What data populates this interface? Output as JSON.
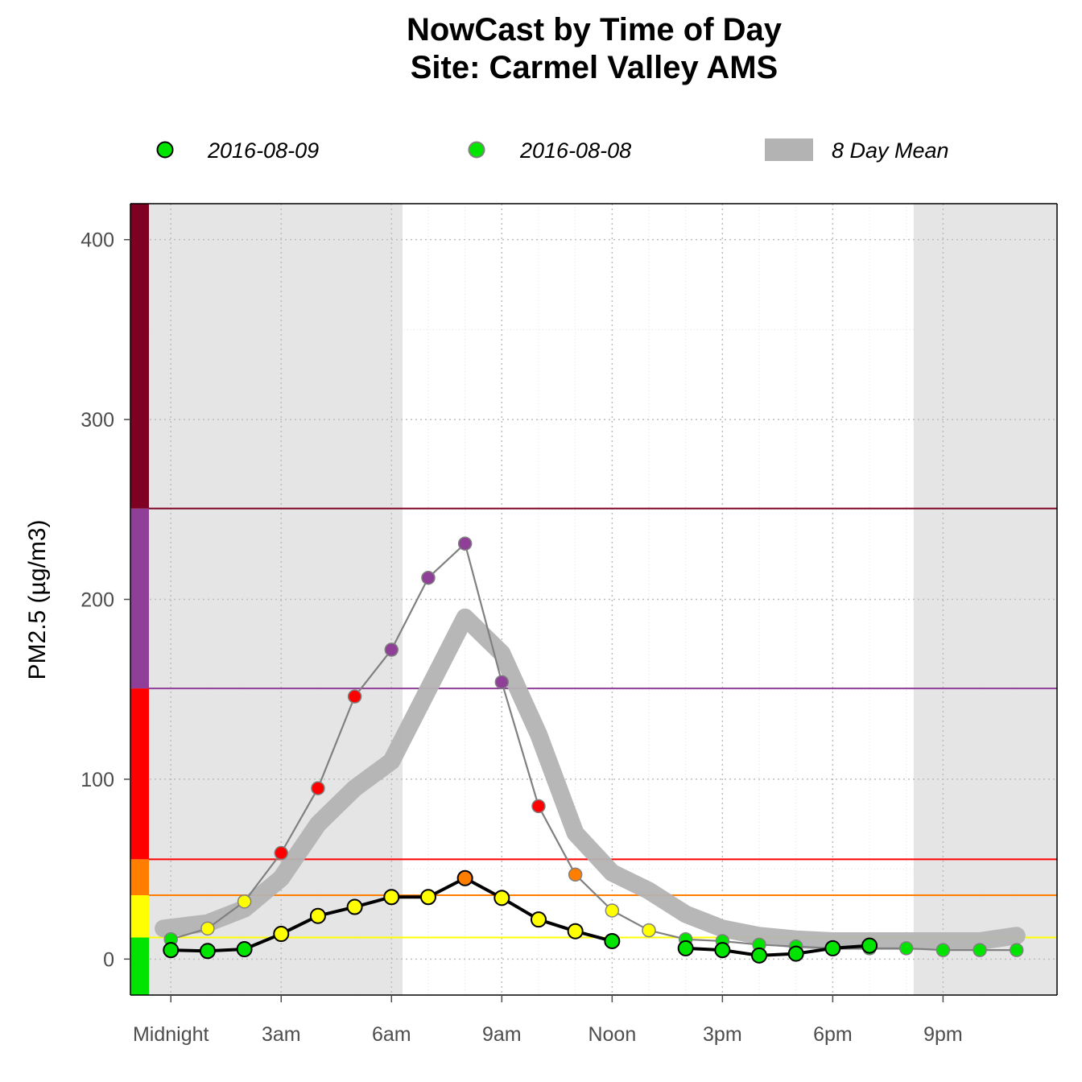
{
  "title_line1": "NowCast by Time of Day",
  "title_line2": "Site: Carmel Valley AMS",
  "legend": {
    "today": "2016-08-09",
    "yesterday": "2016-08-08",
    "mean": "8 Day Mean"
  },
  "colors": {
    "aqi_good": "#00e400",
    "aqi_moderate": "#ffff00",
    "aqi_usg": "#ff7e00",
    "aqi_unhealthy": "#ff0000",
    "aqi_very_unhealthy": "#8f3f97",
    "aqi_hazardous": "#7e0023",
    "night_shade": "#e5e5e5",
    "mean_line": "#b3b3b3",
    "today_line": "#000000",
    "yesterday_line": "#808080"
  },
  "chart_data": {
    "type": "line",
    "ylabel": "PM2.5 (µg/m3)",
    "ylim": [
      -20,
      420
    ],
    "xlim": [
      -1.1,
      24.1
    ],
    "yticks": [
      0,
      100,
      200,
      300,
      400
    ],
    "xticks": [
      {
        "hour": 0,
        "label": "Midnight"
      },
      {
        "hour": 3,
        "label": "3am"
      },
      {
        "hour": 6,
        "label": "6am"
      },
      {
        "hour": 9,
        "label": "9am"
      },
      {
        "hour": 12,
        "label": "Noon"
      },
      {
        "hour": 15,
        "label": "3pm"
      },
      {
        "hour": 18,
        "label": "6pm"
      },
      {
        "hour": 21,
        "label": "9pm"
      }
    ],
    "aqi_breaks": [
      12,
      35.5,
      55.5,
      150.5,
      250.5
    ],
    "night_periods": [
      [
        -1.1,
        6.3
      ],
      [
        20.2,
        24.1
      ]
    ],
    "grid": true,
    "legend_position": "top",
    "series": [
      {
        "name": "8 Day Mean",
        "x": [
          -0.2,
          1,
          2,
          3,
          4,
          5,
          6,
          7,
          8,
          9,
          10,
          11,
          12,
          13,
          14,
          15,
          16,
          17,
          18,
          19,
          20,
          21,
          22,
          23
        ],
        "y": [
          17,
          20,
          28,
          45,
          75,
          95,
          110,
          150,
          190,
          170,
          125,
          70,
          48,
          38,
          25,
          17,
          13,
          11,
          10,
          10,
          10,
          10,
          10,
          13
        ]
      },
      {
        "name": "2016-08-08",
        "x": [
          0,
          1,
          2,
          3,
          4,
          5,
          6,
          7,
          8,
          9,
          10,
          11,
          12,
          13,
          14,
          15,
          16,
          17,
          18,
          19,
          20,
          21,
          22,
          23
        ],
        "y": [
          11,
          17,
          32,
          59,
          95,
          146,
          172,
          212,
          231,
          154,
          85,
          47,
          27,
          16,
          11,
          10,
          8,
          7,
          6,
          6,
          6,
          5,
          5,
          5
        ]
      },
      {
        "name": "2016-08-09",
        "x": [
          0,
          1,
          2,
          3,
          4,
          5,
          6,
          7,
          8,
          9,
          10,
          11,
          12,
          14,
          15,
          16,
          17,
          18,
          19
        ],
        "y": [
          5,
          4.5,
          5.5,
          14,
          24,
          29,
          34.5,
          34.5,
          45,
          34,
          22,
          15.5,
          10,
          6,
          5,
          2,
          3,
          6,
          7.5
        ]
      }
    ]
  }
}
